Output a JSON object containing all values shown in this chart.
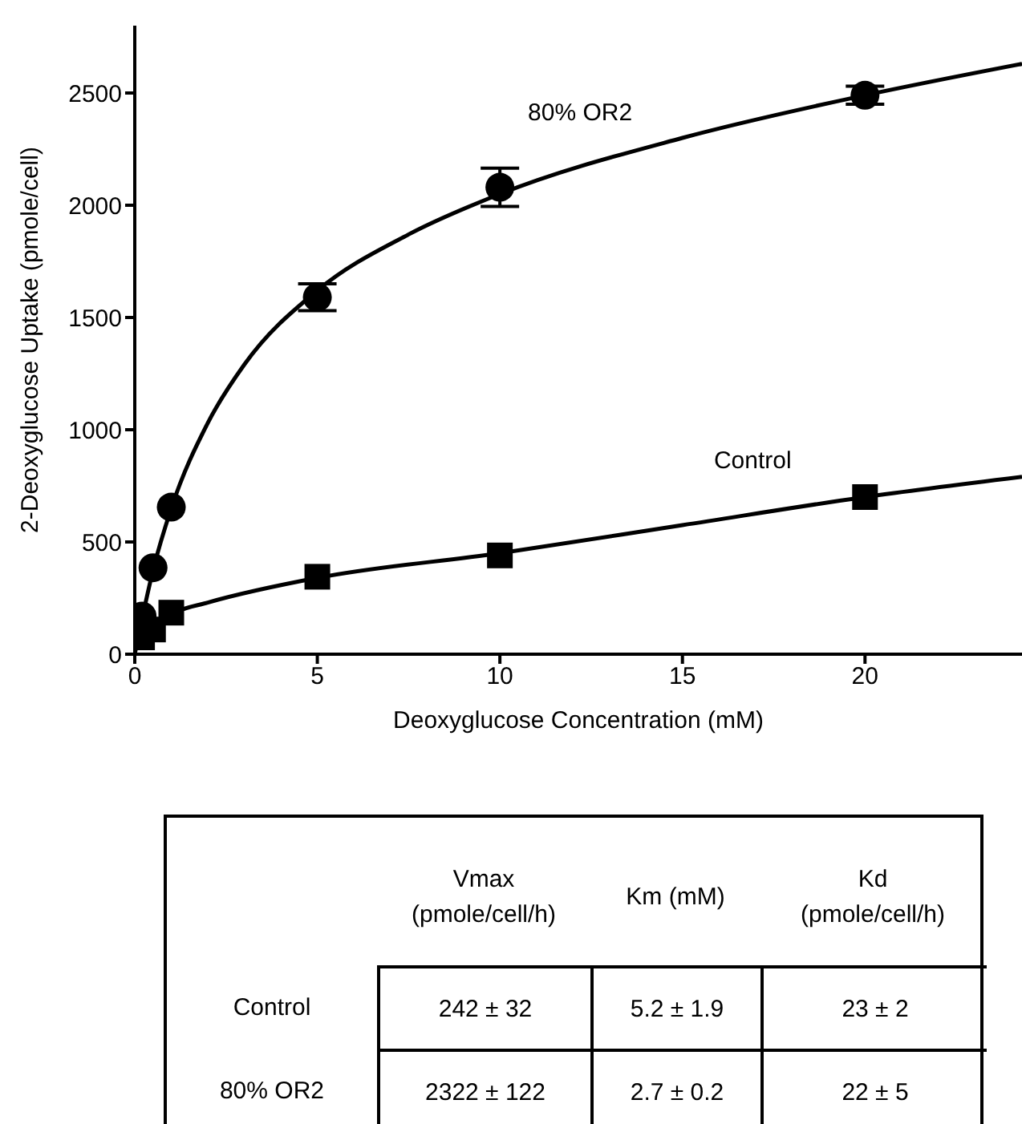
{
  "chart_data": {
    "type": "scatter",
    "xlabel": "Deoxyglucose Concentration (mM)",
    "ylabel": "2-Deoxyglucose Uptake (pmole/cell)",
    "xlim": [
      0,
      24.3
    ],
    "xticks": [
      0,
      5,
      10,
      15,
      20
    ],
    "ylim": [
      0,
      2800
    ],
    "yticks": [
      0,
      500,
      1000,
      1500,
      2000,
      2500
    ],
    "grid": false,
    "legend": false,
    "series": [
      {
        "name": "80% OR2",
        "color": "#000000",
        "marker": "circle",
        "x": [
          0.2,
          0.5,
          1,
          5,
          10,
          20
        ],
        "values": [
          170,
          385,
          655,
          1590,
          2080,
          2490
        ],
        "errors": [
          null,
          null,
          null,
          60,
          85,
          40
        ]
      },
      {
        "name": "Control",
        "color": "#000000",
        "marker": "square",
        "x": [
          0.2,
          0.5,
          1,
          5,
          10,
          20
        ],
        "values": [
          75,
          110,
          185,
          345,
          440,
          700
        ]
      },
      {
        "type": "line",
        "color": "#000000",
        "marker": "none",
        "x": [
          0,
          0.5,
          1,
          2,
          3,
          5,
          7.5,
          10,
          15,
          20,
          24.3
        ],
        "values": [
          0,
          374,
          650,
          1030,
          1290,
          1620,
          1870,
          2050,
          2300,
          2490,
          2630
        ]
      },
      {
        "type": "line",
        "color": "#000000",
        "marker": "none",
        "x": [
          0.2,
          0.5,
          1,
          2,
          5,
          10,
          15,
          20,
          24.3
        ],
        "values": [
          80,
          130,
          180,
          230,
          340,
          450,
          575,
          700,
          790
        ]
      }
    ],
    "annotations": [
      "Vmax (pmole/cell/h)",
      "Km (mM)",
      "Kd (pmole/cell/h)",
      "Control",
      "242 ± 32",
      "5.2 ± 1.9",
      "23 ± 2",
      "80% OR2",
      "2322 ± 122",
      "2.7 ± 0.2",
      "22 ± 5"
    ]
  }
}
